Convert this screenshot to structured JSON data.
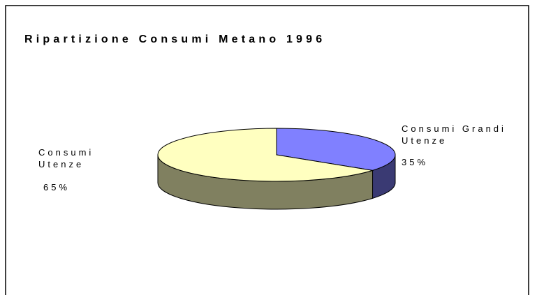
{
  "chart_data": {
    "type": "pie",
    "title": "Ripartizione Consumi Metano 1996",
    "categories": [
      "Consumi Grandi Utenze",
      "Consumi Utenze"
    ],
    "values": [
      35,
      65
    ],
    "value_labels": [
      "35%",
      "65%"
    ],
    "colors": [
      "#8080ff",
      "#ffffc0"
    ]
  }
}
